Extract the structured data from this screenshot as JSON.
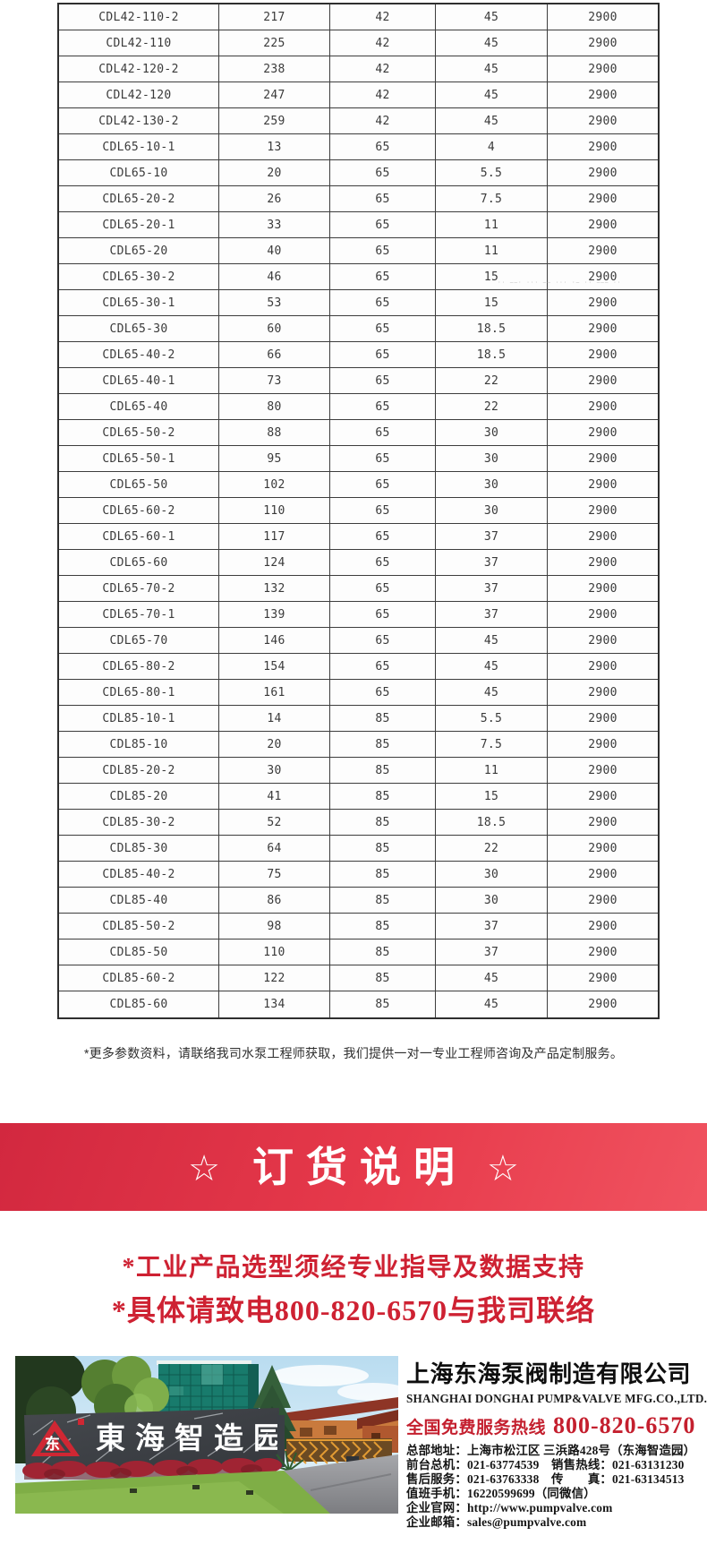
{
  "table": {
    "rows": [
      [
        "CDL42-110-2",
        "217",
        "42",
        "45",
        "2900"
      ],
      [
        "CDL42-110",
        "225",
        "42",
        "45",
        "2900"
      ],
      [
        "CDL42-120-2",
        "238",
        "42",
        "45",
        "2900"
      ],
      [
        "CDL42-120",
        "247",
        "42",
        "45",
        "2900"
      ],
      [
        "CDL42-130-2",
        "259",
        "42",
        "45",
        "2900"
      ],
      [
        "CDL65-10-1",
        "13",
        "65",
        "4",
        "2900"
      ],
      [
        "CDL65-10",
        "20",
        "65",
        "5.5",
        "2900"
      ],
      [
        "CDL65-20-2",
        "26",
        "65",
        "7.5",
        "2900"
      ],
      [
        "CDL65-20-1",
        "33",
        "65",
        "11",
        "2900"
      ],
      [
        "CDL65-20",
        "40",
        "65",
        "11",
        "2900"
      ],
      [
        "CDL65-30-2",
        "46",
        "65",
        "15",
        "2900"
      ],
      [
        "CDL65-30-1",
        "53",
        "65",
        "15",
        "2900"
      ],
      [
        "CDL65-30",
        "60",
        "65",
        "18.5",
        "2900"
      ],
      [
        "CDL65-40-2",
        "66",
        "65",
        "18.5",
        "2900"
      ],
      [
        "CDL65-40-1",
        "73",
        "65",
        "22",
        "2900"
      ],
      [
        "CDL65-40",
        "80",
        "65",
        "22",
        "2900"
      ],
      [
        "CDL65-50-2",
        "88",
        "65",
        "30",
        "2900"
      ],
      [
        "CDL65-50-1",
        "95",
        "65",
        "30",
        "2900"
      ],
      [
        "CDL65-50",
        "102",
        "65",
        "30",
        "2900"
      ],
      [
        "CDL65-60-2",
        "110",
        "65",
        "30",
        "2900"
      ],
      [
        "CDL65-60-1",
        "117",
        "65",
        "37",
        "2900"
      ],
      [
        "CDL65-60",
        "124",
        "65",
        "37",
        "2900"
      ],
      [
        "CDL65-70-2",
        "132",
        "65",
        "37",
        "2900"
      ],
      [
        "CDL65-70-1",
        "139",
        "65",
        "37",
        "2900"
      ],
      [
        "CDL65-70",
        "146",
        "65",
        "45",
        "2900"
      ],
      [
        "CDL65-80-2",
        "154",
        "65",
        "45",
        "2900"
      ],
      [
        "CDL65-80-1",
        "161",
        "65",
        "45",
        "2900"
      ],
      [
        "CDL85-10-1",
        "14",
        "85",
        "5.5",
        "2900"
      ],
      [
        "CDL85-10",
        "20",
        "85",
        "7.5",
        "2900"
      ],
      [
        "CDL85-20-2",
        "30",
        "85",
        "11",
        "2900"
      ],
      [
        "CDL85-20",
        "41",
        "85",
        "15",
        "2900"
      ],
      [
        "CDL85-30-2",
        "52",
        "85",
        "18.5",
        "2900"
      ],
      [
        "CDL85-30",
        "64",
        "85",
        "22",
        "2900"
      ],
      [
        "CDL85-40-2",
        "75",
        "85",
        "30",
        "2900"
      ],
      [
        "CDL85-40",
        "86",
        "85",
        "30",
        "2900"
      ],
      [
        "CDL85-50-2",
        "98",
        "85",
        "37",
        "2900"
      ],
      [
        "CDL85-50",
        "110",
        "85",
        "37",
        "2900"
      ],
      [
        "CDL85-60-2",
        "122",
        "85",
        "45",
        "2900"
      ],
      [
        "CDL85-60",
        "134",
        "85",
        "45",
        "2900"
      ]
    ]
  },
  "watermark_text": "·· ——· ··· —— ··· ·— ·· ——— ··",
  "note": "*更多参数资料，请联络我司水泵工程师获取，我们提供一对一专业工程师咨询及产品定制服务。",
  "banner": {
    "star": "☆",
    "title": "订货说明"
  },
  "notice_line_1": "*工业产品选型须经专业指导及数据支持",
  "notice_line_2": "*具体请致电800-820-6570与我司联络",
  "footer": {
    "company_cn": "上海东海泵阀制造有限公司",
    "company_en": "SHANGHAI DONGHAI PUMP&VALVE MFG.CO.,LTD.",
    "hotline_label": "全国免费服务热线",
    "hotline_number": "800-820-6570",
    "info_lines": [
      "总部地址：上海市松江区 三浜路428号（东海智造园）",
      "前台总机：021-63774539　销售热线：021-63131230",
      "售后服务：021-63763338　传　　真：021-63134513",
      "值班手机：16220599699（同微信）",
      "企业官网：http://www.pumpvalve.com",
      "企业邮箱：sales@pumpvalve.com"
    ],
    "photo": {
      "sign_text": "東海智造园",
      "logo_char": "东"
    }
  },
  "colors": {
    "banner_red_dark": "#d2283f",
    "banner_red_light": "#f05360",
    "notice_red": "#ce2132",
    "hotline_red": "#c41f2e",
    "table_border": "#3d3d3d"
  }
}
